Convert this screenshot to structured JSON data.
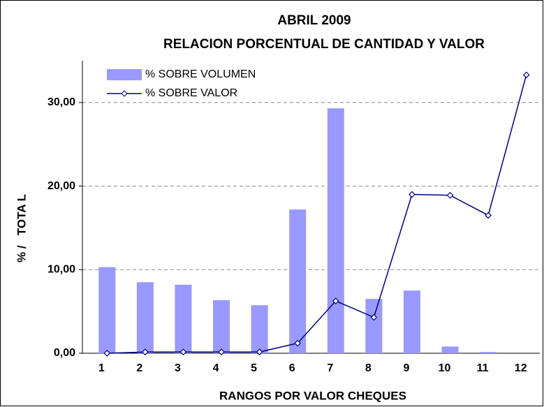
{
  "chart_data": {
    "type": "bar_line",
    "title": "ABRIL 2009",
    "subtitle": "RELACION PORCENTUAL DE CANTIDAD Y VALOR",
    "x_label": "RANGOS POR VALOR CHEQUES",
    "y_label": "% /   TOTA L",
    "categories": [
      "1",
      "2",
      "3",
      "4",
      "5",
      "6",
      "7",
      "8",
      "9",
      "10",
      "11",
      "12"
    ],
    "series": [
      {
        "name": "% SOBRE VOLUMEN",
        "type": "bar",
        "color": "#9999ff",
        "values": [
          10.3,
          8.5,
          8.2,
          6.35,
          5.75,
          17.2,
          29.3,
          6.5,
          7.5,
          0.8,
          0.15,
          0
        ]
      },
      {
        "name": "% SOBRE VALOR",
        "type": "line",
        "color": "#000080",
        "values": [
          0,
          0.15,
          0.15,
          0.15,
          0.15,
          1.2,
          6.25,
          4.3,
          19.0,
          18.9,
          16.5,
          33.3
        ]
      }
    ],
    "ylim": [
      0,
      35
    ],
    "yticks": [
      {
        "value": 0,
        "label": "0,00"
      },
      {
        "value": 10,
        "label": "10,00"
      },
      {
        "value": 20,
        "label": "20,00"
      },
      {
        "value": 30,
        "label": "30,00"
      }
    ],
    "grid": true,
    "legend": "top-left"
  }
}
